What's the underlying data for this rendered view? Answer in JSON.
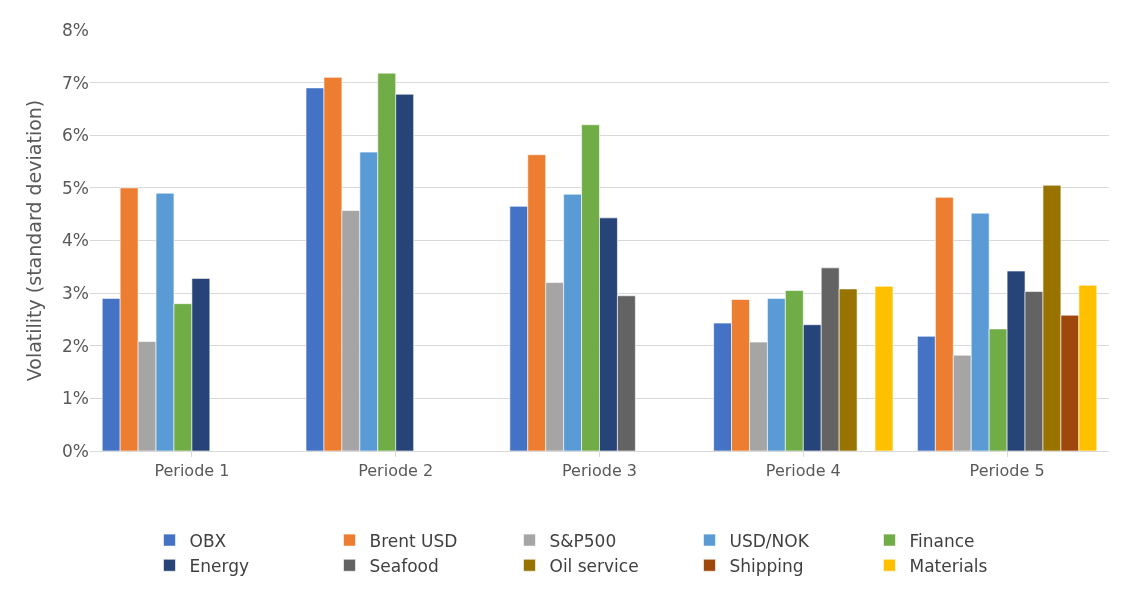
{
  "chart_data": {
    "type": "bar",
    "ylabel": "Volatility (standard deviation)",
    "categories": [
      "Periode 1",
      "Periode 2",
      "Periode 3",
      "Periode 4",
      "Periode 5"
    ],
    "series": [
      {
        "name": "OBX",
        "color": "#4472c4",
        "values": [
          2.9,
          6.9,
          4.65,
          2.43,
          2.18
        ]
      },
      {
        "name": "Brent USD",
        "color": "#ed7d31",
        "values": [
          5.0,
          7.1,
          5.63,
          2.88,
          4.82
        ]
      },
      {
        "name": "S&P500",
        "color": "#a5a5a5",
        "values": [
          2.08,
          4.57,
          3.2,
          2.07,
          1.82
        ]
      },
      {
        "name": "USD/NOK",
        "color": "#5b9bd5",
        "values": [
          4.9,
          5.68,
          4.88,
          2.9,
          4.52
        ]
      },
      {
        "name": "Finance",
        "color": "#70ad47",
        "values": [
          2.8,
          7.18,
          6.2,
          3.05,
          2.32
        ]
      },
      {
        "name": "Energy",
        "color": "#264478",
        "values": [
          3.28,
          6.78,
          4.43,
          2.4,
          3.42
        ]
      },
      {
        "name": "Seafood",
        "color": "#636363",
        "values": [
          null,
          null,
          2.95,
          3.48,
          3.03
        ]
      },
      {
        "name": "Oil service",
        "color": "#997300",
        "values": [
          null,
          null,
          null,
          3.08,
          5.05
        ]
      },
      {
        "name": "Shipping",
        "color": "#9e480e",
        "values": [
          null,
          null,
          null,
          null,
          2.58
        ]
      },
      {
        "name": "Materials",
        "color": "#ffc000",
        "values": [
          null,
          null,
          null,
          3.13,
          3.15
        ]
      }
    ],
    "ylim": [
      0,
      8
    ],
    "yticks": [
      {
        "value": 0,
        "label": "0%"
      },
      {
        "value": 1,
        "label": "1%"
      },
      {
        "value": 2,
        "label": "2%"
      },
      {
        "value": 3,
        "label": "3%"
      },
      {
        "value": 4,
        "label": "4%"
      },
      {
        "value": 5,
        "label": "5%"
      },
      {
        "value": 6,
        "label": "6%"
      },
      {
        "value": 7,
        "label": "7%"
      },
      {
        "value": 8,
        "label": "8%"
      }
    ],
    "grid": "y",
    "legend": "bottom"
  }
}
